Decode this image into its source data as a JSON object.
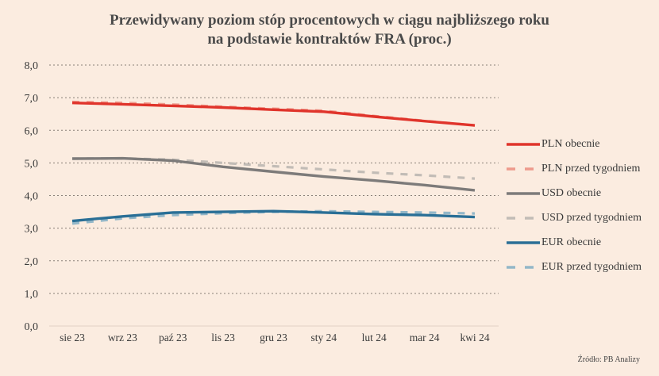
{
  "chart_data": {
    "type": "line",
    "title": "Przewidywany poziom stóp procentowych w ciągu najbliższego roku",
    "subtitle": "na podstawie kontraktów FRA (proc.)",
    "xlabel": "",
    "ylabel": "",
    "x": [
      "sie 23",
      "wrz 23",
      "paź 23",
      "lis 23",
      "gru 23",
      "sty 24",
      "lut 24",
      "mar 24",
      "kwi 24"
    ],
    "ylim": [
      0,
      8
    ],
    "yticks": [
      "0,0",
      "1,0",
      "2,0",
      "3,0",
      "4,0",
      "5,0",
      "6,0",
      "7,0",
      "8,0"
    ],
    "grid": true,
    "legend_position": "right",
    "series": [
      {
        "name": "PLN obecnie",
        "color": "#e0342b",
        "style": "solid",
        "values": [
          6.84,
          6.8,
          6.75,
          6.7,
          6.63,
          6.57,
          6.42,
          6.28,
          6.15
        ]
      },
      {
        "name": "PLN przed tygodniem",
        "color": "#ee9a8c",
        "style": "dashed",
        "values": [
          6.87,
          6.84,
          6.79,
          6.72,
          6.66,
          6.6,
          6.44,
          6.29,
          6.15
        ]
      },
      {
        "name": "USD obecnie",
        "color": "#7d7b7a",
        "style": "solid",
        "values": [
          5.13,
          5.14,
          5.07,
          4.88,
          4.73,
          4.58,
          4.46,
          4.32,
          4.16
        ]
      },
      {
        "name": "USD przed tygodniem",
        "color": "#c2bcb6",
        "style": "dashed",
        "values": [
          5.13,
          5.14,
          5.1,
          5.0,
          4.9,
          4.8,
          4.7,
          4.62,
          4.52
        ]
      },
      {
        "name": "EUR obecnie",
        "color": "#2a6f96",
        "style": "solid",
        "values": [
          3.22,
          3.36,
          3.48,
          3.5,
          3.52,
          3.48,
          3.43,
          3.4,
          3.34
        ]
      },
      {
        "name": "EUR przed tygodniem",
        "color": "#93b7c8",
        "style": "dashed",
        "values": [
          3.14,
          3.3,
          3.4,
          3.46,
          3.5,
          3.52,
          3.5,
          3.48,
          3.45
        ]
      }
    ],
    "source": "Źródło: PB Analizy"
  }
}
